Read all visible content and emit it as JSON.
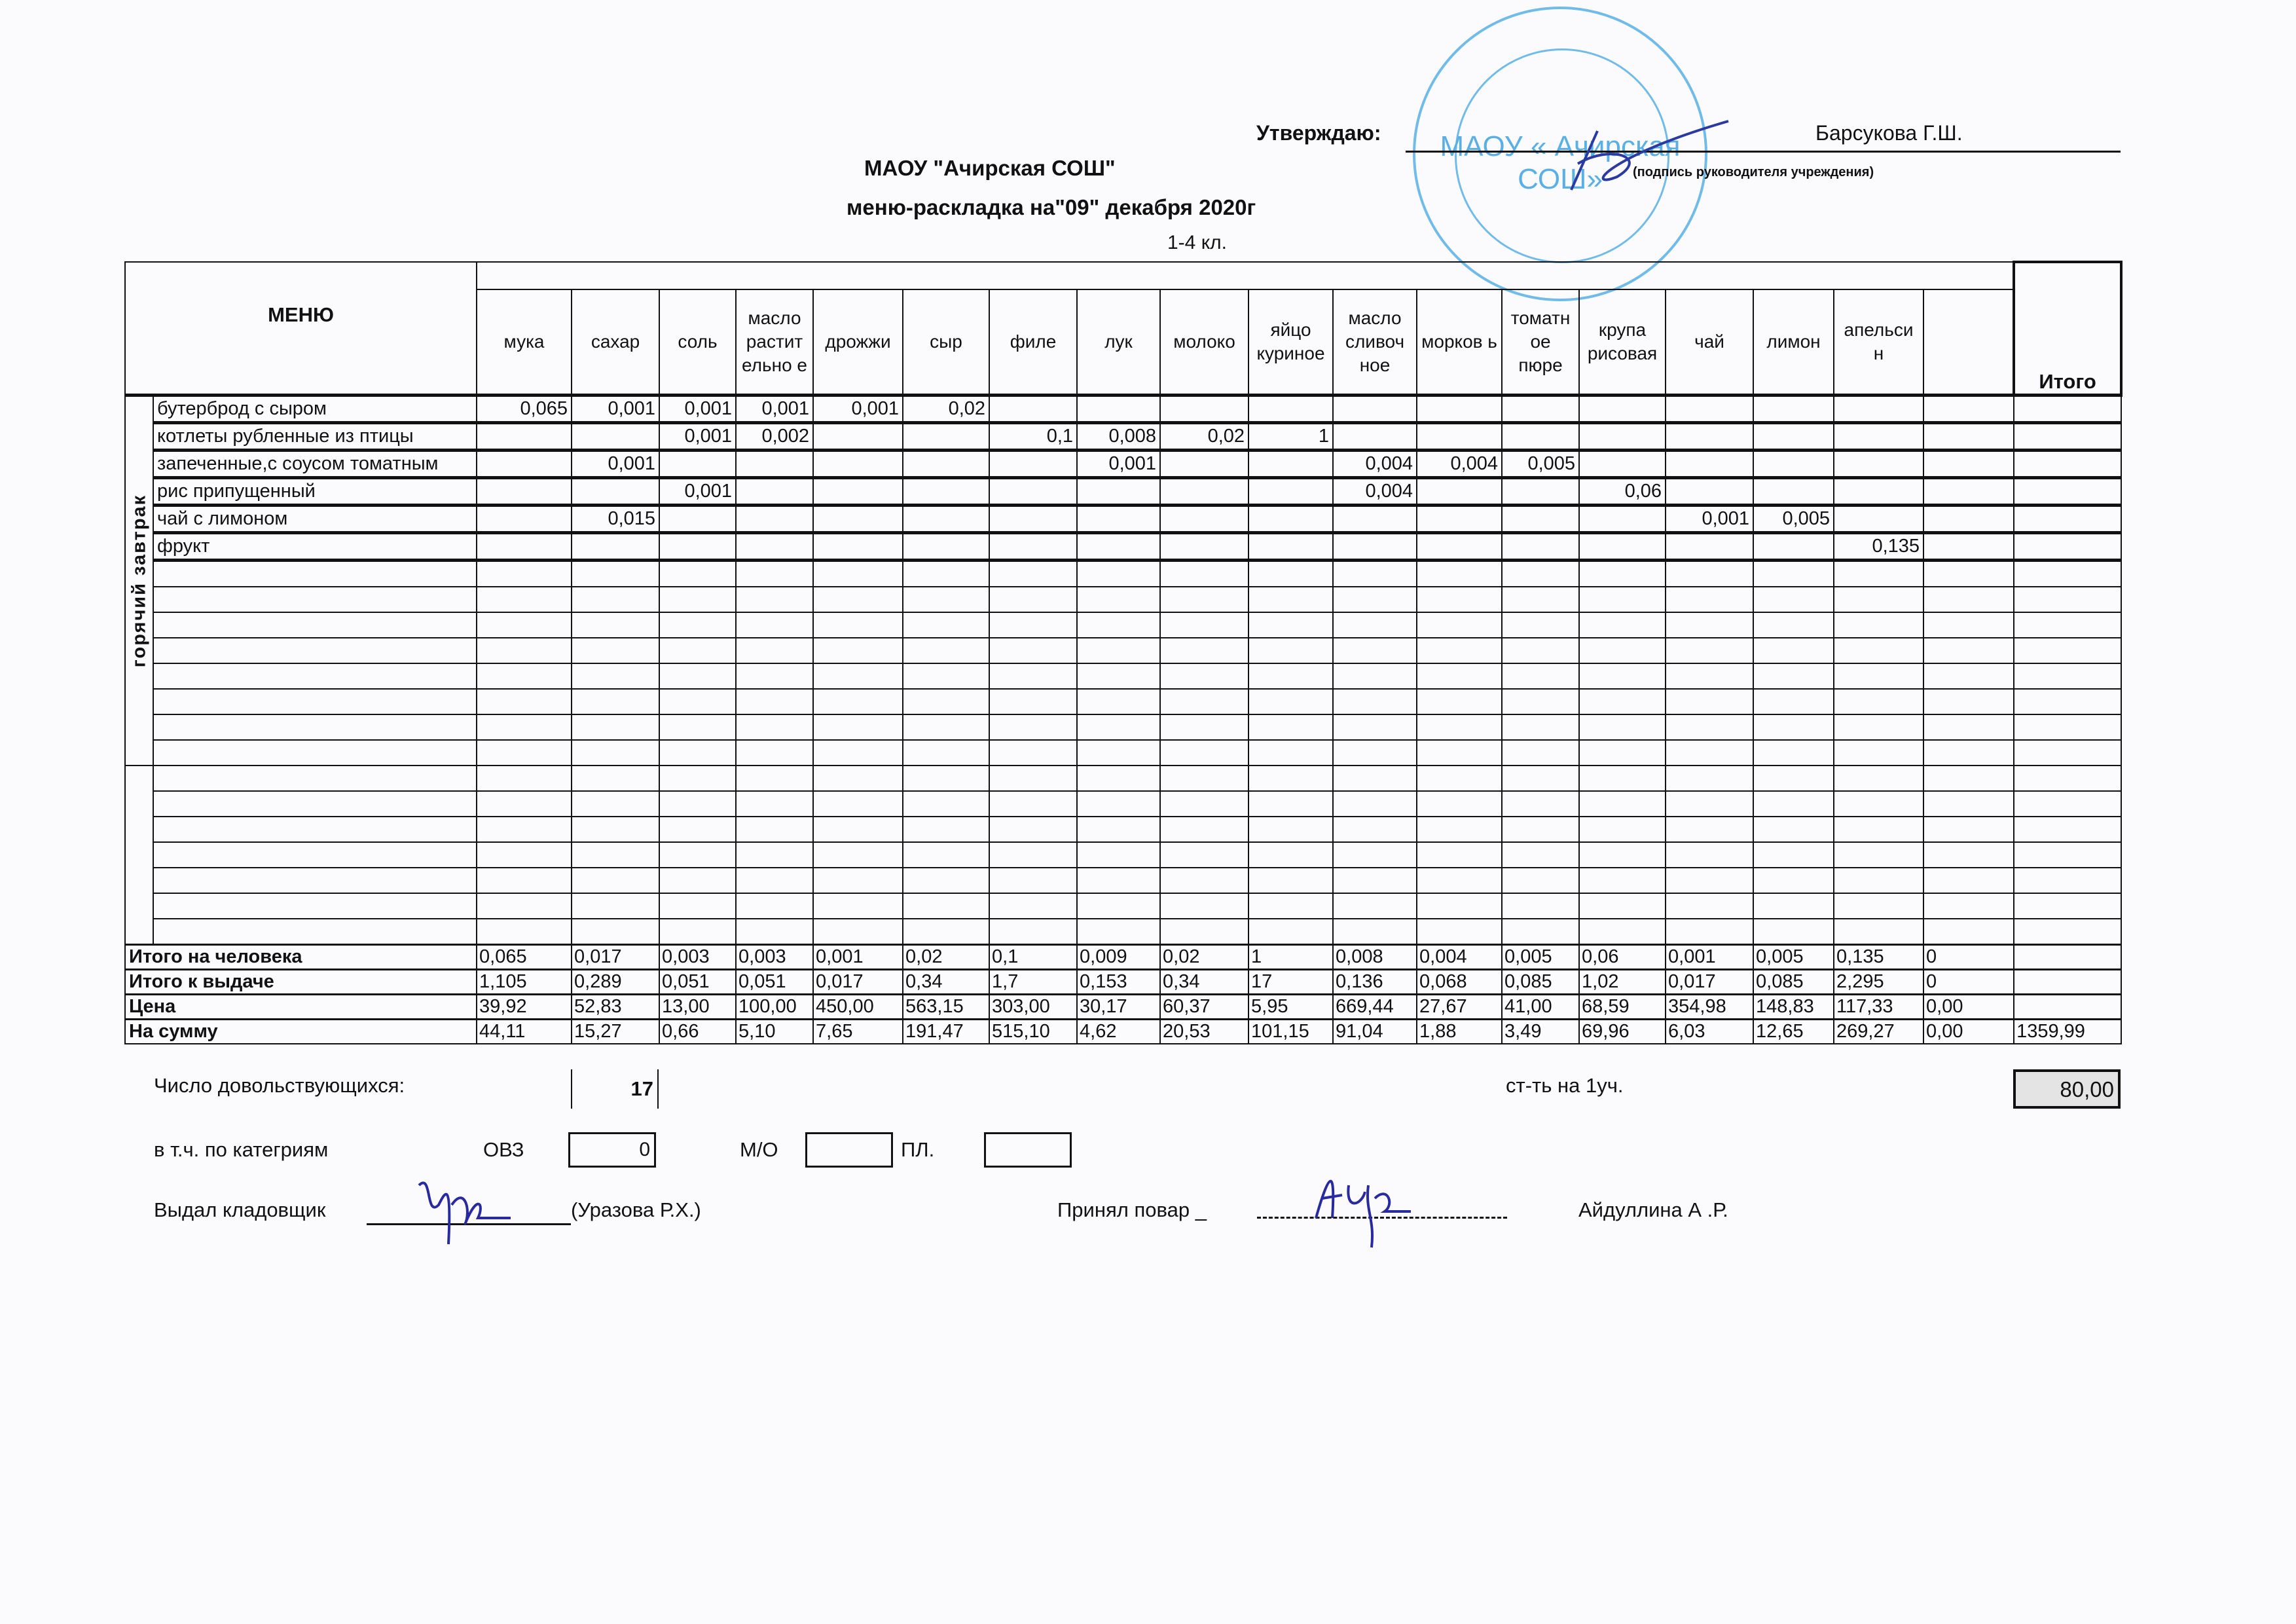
{
  "header": {
    "approve_label": "Утверждаю:",
    "approver_name": "Барсукова Г.Ш.",
    "signature_caption": "(подпись руководителя учреждения)",
    "school": "МАОУ \"Ачирская СОШ\"",
    "title": "меню-раскладка на\"09\" декабря 2020г",
    "grade": "1-4 кл."
  },
  "stamp": {
    "center_text": "МАОУ « Ачирская СОШ»",
    "color": "#3ea3e0"
  },
  "table": {
    "menu_header": "МЕНЮ",
    "total_header": "Итого",
    "section_label": "горячий завтрак",
    "columns": [
      "мука",
      "сахар",
      "соль",
      "масло растит ельно е",
      "дрожжи",
      "сыр",
      "филе",
      "лук",
      "молоко",
      "яйцо куриное",
      "масло сливоч ное",
      "морков ь",
      "томатн ое пюре",
      "крупа рисовая",
      "чай",
      "лимон",
      "апельси н",
      ""
    ],
    "dishes": [
      {
        "name": "бутерброд с сыром",
        "values": [
          "0,065",
          "0,001",
          "0,001",
          "0,001",
          "0,001",
          "0,02",
          "",
          "",
          "",
          "",
          "",
          "",
          "",
          "",
          "",
          "",
          "",
          ""
        ]
      },
      {
        "name": "котлеты рубленные из птицы",
        "values": [
          "",
          "",
          "0,001",
          "0,002",
          "",
          "",
          "0,1",
          "0,008",
          "0,02",
          "1",
          "",
          "",
          "",
          "",
          "",
          "",
          "",
          ""
        ]
      },
      {
        "name": "запеченные,с соусом томатным",
        "values": [
          "",
          "0,001",
          "",
          "",
          "",
          "",
          "",
          "0,001",
          "",
          "",
          "0,004",
          "0,004",
          "0,005",
          "",
          "",
          "",
          "",
          ""
        ]
      },
      {
        "name": "рис припущенный",
        "values": [
          "",
          "",
          "0,001",
          "",
          "",
          "",
          "",
          "",
          "",
          "",
          "0,004",
          "",
          "",
          "0,06",
          "",
          "",
          "",
          ""
        ]
      },
      {
        "name": "чай с лимоном",
        "values": [
          "",
          "0,015",
          "",
          "",
          "",
          "",
          "",
          "",
          "",
          "",
          "",
          "",
          "",
          "",
          "0,001",
          "0,005",
          "",
          ""
        ]
      },
      {
        "name": "фрукт",
        "values": [
          "",
          "",
          "",
          "",
          "",
          "",
          "",
          "",
          "",
          "",
          "",
          "",
          "",
          "",
          "",
          "",
          "0,135",
          ""
        ]
      }
    ],
    "totals": [
      {
        "label": "Итого на человека",
        "values": [
          "0,065",
          "0,017",
          "0,003",
          "0,003",
          "0,001",
          "0,02",
          "0,1",
          "0,009",
          "0,02",
          "1",
          "0,008",
          "0,004",
          "0,005",
          "0,06",
          "0,001",
          "0,005",
          "0,135",
          "0"
        ],
        "total": ""
      },
      {
        "label": "Итого к выдаче",
        "values": [
          "1,105",
          "0,289",
          "0,051",
          "0,051",
          "0,017",
          "0,34",
          "1,7",
          "0,153",
          "0,34",
          "17",
          "0,136",
          "0,068",
          "0,085",
          "1,02",
          "0,017",
          "0,085",
          "2,295",
          "0"
        ],
        "total": ""
      },
      {
        "label": "Цена",
        "values": [
          "39,92",
          "52,83",
          "13,00",
          "100,00",
          "450,00",
          "563,15",
          "303,00",
          "30,17",
          "60,37",
          "5,95",
          "669,44",
          "27,67",
          "41,00",
          "68,59",
          "354,98",
          "148,83",
          "117,33",
          "0,00"
        ],
        "total": ""
      },
      {
        "label": "На сумму",
        "values": [
          "44,11",
          "15,27",
          "0,66",
          "5,10",
          "7,65",
          "191,47",
          "515,10",
          "4,62",
          "20,53",
          "101,15",
          "91,04",
          "1,88",
          "3,49",
          "69,96",
          "6,03",
          "12,65",
          "269,27",
          "0,00"
        ],
        "total": "1359,99"
      }
    ]
  },
  "footer": {
    "eaters_label": "Число довольствующихся:",
    "eaters_value": "17",
    "cost_label": "ст-ть на 1уч.",
    "cost_value": "80,00",
    "categories_label": "в т.ч. по категриям",
    "ovz_label": "ОВЗ",
    "ovz_value": "0",
    "mo_label": "М/О",
    "mo_value": "",
    "pl_label": "ПЛ.",
    "pl_value": "",
    "issued_label": "Выдал кладовщик",
    "issued_name": "(Уразова Р.Х.)",
    "received_label": "Принял повар  _",
    "received_name": "Айдуллина А .Р."
  }
}
